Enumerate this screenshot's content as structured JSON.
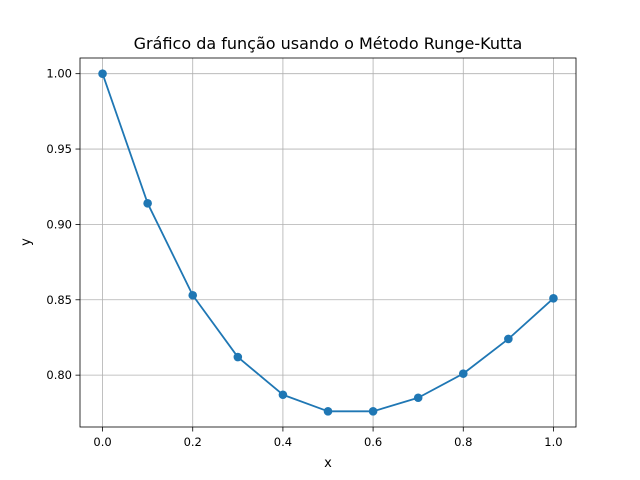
{
  "chart_data": {
    "type": "line",
    "title": "Gráfico da função usando o Método Runge-Kutta",
    "xlabel": "x",
    "ylabel": "y",
    "xlim": [
      -0.05,
      1.05
    ],
    "ylim": [
      0.7656,
      1.0104
    ],
    "grid": true,
    "marker": "circle",
    "color": "#1f77b4",
    "xticks": [
      0.0,
      0.2,
      0.4,
      0.6,
      0.8,
      1.0
    ],
    "xtick_labels": [
      "0.0",
      "0.2",
      "0.4",
      "0.6",
      "0.8",
      "1.0"
    ],
    "yticks": [
      0.8,
      0.85,
      0.9,
      0.95,
      1.0
    ],
    "ytick_labels": [
      "0.80",
      "0.85",
      "0.90",
      "0.95",
      "1.00"
    ],
    "series": [
      {
        "x": [
          0.0,
          0.1,
          0.2,
          0.3,
          0.4,
          0.5,
          0.6,
          0.7,
          0.8,
          0.9,
          1.0
        ],
        "y": [
          1.0,
          0.914,
          0.853,
          0.812,
          0.787,
          0.776,
          0.776,
          0.785,
          0.801,
          0.824,
          0.851
        ]
      }
    ]
  }
}
